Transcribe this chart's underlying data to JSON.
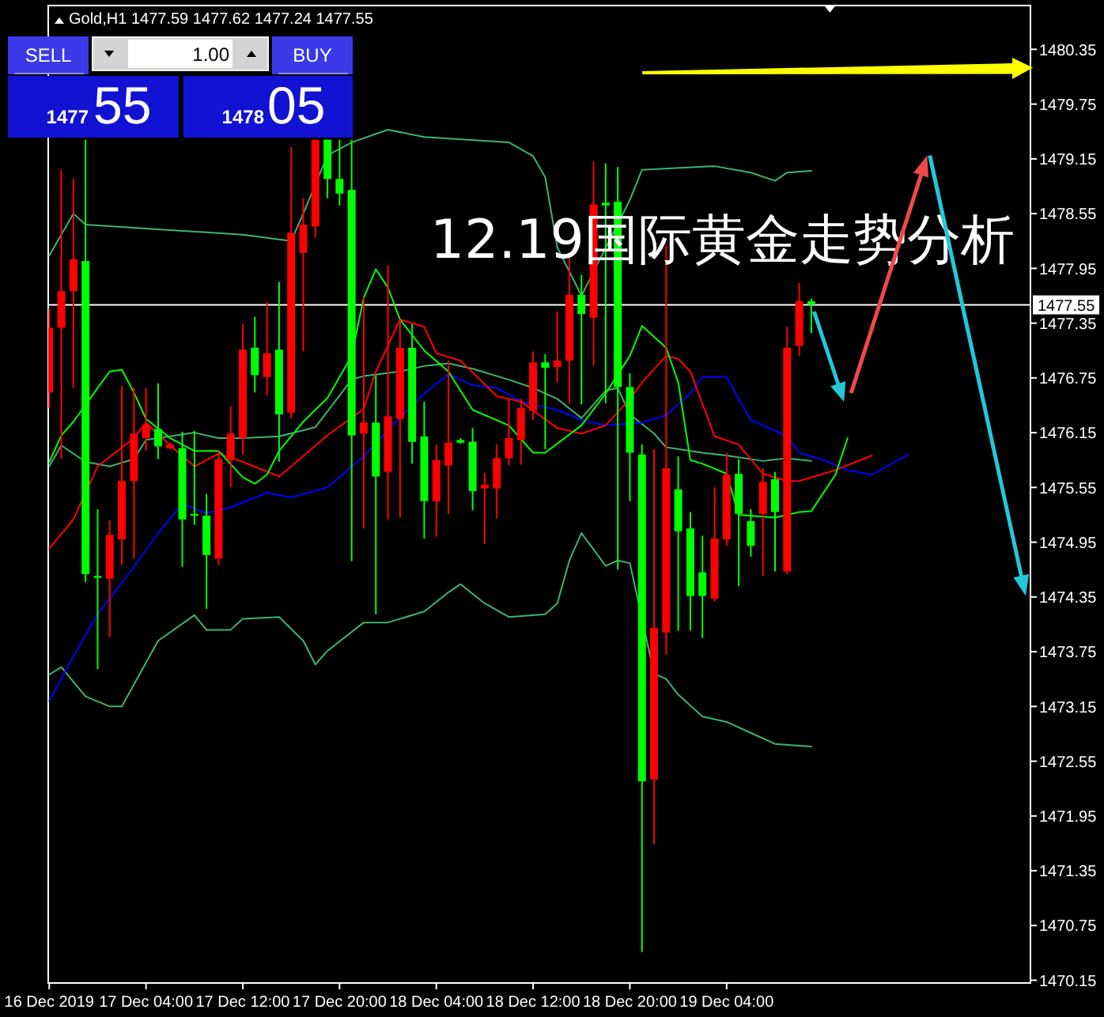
{
  "chart_data": {
    "type": "candlestick",
    "title": "12.19国际黄金走势分析",
    "subtitle": "Gold,H1 1477.59 1477.62 1477.24 1477.55",
    "annotations": [
      "SELL",
      "1.00",
      "BUY",
      "1477",
      "55",
      "1478",
      "05"
    ],
    "x": [
      "2019-12-16T20:00",
      "2019-12-16T21:00",
      "2019-12-16T22:00",
      "2019-12-16T23:00",
      "2019-12-17T00:00",
      "2019-12-17T01:00",
      "2019-12-17T02:00",
      "2019-12-17T03:00",
      "2019-12-17T04:00",
      "2019-12-17T05:00",
      "2019-12-17T06:00",
      "2019-12-17T07:00",
      "2019-12-17T08:00",
      "2019-12-17T09:00",
      "2019-12-17T10:00",
      "2019-12-17T11:00",
      "2019-12-17T12:00",
      "2019-12-17T13:00",
      "2019-12-17T14:00",
      "2019-12-17T15:00",
      "2019-12-17T16:00",
      "2019-12-17T17:00",
      "2019-12-17T18:00",
      "2019-12-17T19:00",
      "2019-12-17T20:00",
      "2019-12-17T21:00",
      "2019-12-17T22:00",
      "2019-12-17T23:00",
      "2019-12-18T00:00",
      "2019-12-18T01:00",
      "2019-12-18T02:00",
      "2019-12-18T03:00",
      "2019-12-18T04:00",
      "2019-12-18T05:00",
      "2019-12-18T06:00",
      "2019-12-18T07:00",
      "2019-12-18T08:00",
      "2019-12-18T09:00",
      "2019-12-18T10:00",
      "2019-12-18T11:00",
      "2019-12-18T12:00",
      "2019-12-18T13:00",
      "2019-12-18T14:00",
      "2019-12-18T15:00",
      "2019-12-18T16:00",
      "2019-12-18T17:00",
      "2019-12-18T18:00",
      "2019-12-18T19:00",
      "2019-12-18T20:00",
      "2019-12-18T21:00",
      "2019-12-18T22:00",
      "2019-12-18T23:00",
      "2019-12-19T00:00",
      "2019-12-19T01:00",
      "2019-12-19T02:00",
      "2019-12-19T03:00",
      "2019-12-19T04:00",
      "2019-12-19T05:00",
      "2019-12-19T06:00",
      "2019-12-19T07:00",
      "2019-12-19T08:00",
      "2019-12-19T09:00",
      "2019-12-19T10:00",
      "2019-12-19T11:00"
    ],
    "ohlc": [
      [
        1476.59,
        1477.51,
        1476.42,
        1477.3
      ],
      [
        1477.3,
        1479.03,
        1475.86,
        1477.7
      ],
      [
        1477.7,
        1478.93,
        1476.64,
        1478.05
      ],
      [
        1478.03,
        1479.36,
        1474.51,
        1474.6
      ],
      [
        1474.58,
        1475.31,
        1473.56,
        1474.56
      ],
      [
        1474.55,
        1475.19,
        1473.91,
        1475.03
      ],
      [
        1474.98,
        1476.66,
        1474.7,
        1475.62
      ],
      [
        1475.62,
        1476.64,
        1474.77,
        1476.14
      ],
      [
        1476.09,
        1476.64,
        1475.95,
        1476.24
      ],
      [
        1476.19,
        1476.69,
        1475.86,
        1476.0
      ],
      [
        1475.98,
        1476.04,
        1475.97,
        1476.02
      ],
      [
        1475.98,
        1476.16,
        1474.68,
        1475.2
      ],
      [
        1475.26,
        1476.17,
        1475.14,
        1475.24
      ],
      [
        1475.24,
        1475.48,
        1474.22,
        1474.81
      ],
      [
        1474.77,
        1475.95,
        1474.7,
        1475.86
      ],
      [
        1475.85,
        1476.44,
        1475.55,
        1476.14
      ],
      [
        1476.09,
        1477.34,
        1475.91,
        1477.06
      ],
      [
        1477.08,
        1477.42,
        1476.59,
        1476.78
      ],
      [
        1476.76,
        1477.58,
        1476.56,
        1477.02
      ],
      [
        1477.06,
        1477.8,
        1475.83,
        1476.35
      ],
      [
        1476.37,
        1479.28,
        1476.3,
        1478.34
      ],
      [
        1478.12,
        1478.72,
        1477.04,
        1478.43
      ],
      [
        1478.41,
        1479.36,
        1478.29,
        1479.36
      ],
      [
        1479.36,
        1479.36,
        1478.72,
        1478.93
      ],
      [
        1478.93,
        1479.36,
        1478.64,
        1478.77
      ],
      [
        1478.81,
        1479.36,
        1474.74,
        1476.12
      ],
      [
        1476.14,
        1477.63,
        1475.1,
        1476.26
      ],
      [
        1476.26,
        1476.78,
        1474.16,
        1475.67
      ],
      [
        1475.72,
        1477.98,
        1475.2,
        1476.33
      ],
      [
        1476.3,
        1477.39,
        1475.22,
        1477.08
      ],
      [
        1477.08,
        1477.34,
        1475.81,
        1476.05
      ],
      [
        1476.11,
        1476.49,
        1474.99,
        1475.4
      ],
      [
        1475.4,
        1476.02,
        1475.01,
        1475.85
      ],
      [
        1475.79,
        1476.94,
        1475.26,
        1476.04
      ],
      [
        1476.07,
        1476.09,
        1476.03,
        1476.04
      ],
      [
        1476.05,
        1476.2,
        1475.3,
        1475.51
      ],
      [
        1475.54,
        1475.71,
        1474.93,
        1475.58
      ],
      [
        1475.54,
        1476.02,
        1475.21,
        1475.87
      ],
      [
        1475.87,
        1476.52,
        1475.79,
        1476.09
      ],
      [
        1476.07,
        1476.52,
        1475.8,
        1476.42
      ],
      [
        1476.39,
        1477.04,
        1476.29,
        1476.92
      ],
      [
        1476.92,
        1477.01,
        1475.97,
        1476.86
      ],
      [
        1476.87,
        1477.48,
        1476.7,
        1476.94
      ],
      [
        1476.94,
        1478.09,
        1476.47,
        1477.66
      ],
      [
        1477.66,
        1477.88,
        1476.46,
        1477.45
      ],
      [
        1477.41,
        1479.12,
        1476.88,
        1478.65
      ],
      [
        1478.67,
        1479.1,
        1476.47,
        1478.64
      ],
      [
        1478.68,
        1479.06,
        1474.65,
        1476.65
      ],
      [
        1476.65,
        1476.8,
        1475.4,
        1475.93
      ],
      [
        1475.91,
        1476.02,
        1470.46,
        1472.33
      ],
      [
        1472.35,
        1475.97,
        1471.64,
        1474.01
      ],
      [
        1473.96,
        1478.2,
        1473.72,
        1475.76
      ],
      [
        1475.53,
        1475.89,
        1473.98,
        1475.07
      ],
      [
        1475.1,
        1475.28,
        1473.98,
        1474.36
      ],
      [
        1474.62,
        1475.02,
        1473.9,
        1474.36
      ],
      [
        1474.33,
        1475.55,
        1474.3,
        1474.99
      ],
      [
        1474.98,
        1475.93,
        1474.91,
        1475.69
      ],
      [
        1475.7,
        1475.86,
        1474.47,
        1475.26
      ],
      [
        1475.18,
        1475.31,
        1474.79,
        1474.91
      ],
      [
        1475.26,
        1475.76,
        1474.58,
        1475.61
      ],
      [
        1475.64,
        1475.72,
        1474.63,
        1475.28
      ],
      [
        1474.63,
        1477.31,
        1474.6,
        1477.08
      ],
      [
        1477.1,
        1477.79,
        1476.99,
        1477.59
      ],
      [
        1477.59,
        1477.62,
        1477.24,
        1477.55
      ]
    ],
    "colors": [
      "#ff0000",
      "#ff0000",
      "#ff0000",
      "#00ff00",
      "#00ff00",
      "#ff0000",
      "#ff0000",
      "#ff0000",
      "#ff0000",
      "#00ff00",
      "#ff0000",
      "#00ff00",
      "#00ff00",
      "#00ff00",
      "#ff0000",
      "#ff0000",
      "#ff0000",
      "#00ff00",
      "#ff0000",
      "#00ff00",
      "#ff0000",
      "#ff0000",
      "#ff0000",
      "#00ff00",
      "#00ff00",
      "#00ff00",
      "#ff0000",
      "#00ff00",
      "#ff0000",
      "#ff0000",
      "#00ff00",
      "#00ff00",
      "#ff0000",
      "#ff0000",
      "#00ff00",
      "#00ff00",
      "#ff0000",
      "#ff0000",
      "#ff0000",
      "#ff0000",
      "#ff0000",
      "#00ff00",
      "#ff0000",
      "#ff0000",
      "#00ff00",
      "#ff0000",
      "#00ff00",
      "#00ff00",
      "#00ff00",
      "#00ff00",
      "#ff0000",
      "#ff0000",
      "#00ff00",
      "#00ff00",
      "#00ff00",
      "#ff0000",
      "#ff0000",
      "#00ff00",
      "#00ff00",
      "#ff0000",
      "#00ff00",
      "#ff0000",
      "#ff0000",
      "#00ff00"
    ],
    "series": [
      {
        "type": "line",
        "color": "#3cb371",
        "x": [
          "2019-12-16T20:00",
          "2019-12-16T21:00",
          "2019-12-16T23:00",
          "2019-12-17T01:00",
          "2019-12-17T02:00",
          "2019-12-17T05:00",
          "2019-12-17T08:00",
          "2019-12-17T09:00",
          "2019-12-17T11:00",
          "2019-12-17T12:00",
          "2019-12-17T15:00",
          "2019-12-17T17:00",
          "2019-12-17T18:00",
          "2019-12-17T19:00",
          "2019-12-17T22:00",
          "2019-12-18T00:00",
          "2019-12-18T03:00",
          "2019-12-18T05:00",
          "2019-12-18T06:00",
          "2019-12-18T08:00",
          "2019-12-18T10:00",
          "2019-12-18T13:00",
          "2019-12-18T14:00",
          "2019-12-18T15:00",
          "2019-12-18T16:00",
          "2019-12-18T17:00",
          "2019-12-18T18:00",
          "2019-12-18T19:00",
          "2019-12-18T20:00",
          "2019-12-18T22:00",
          "2019-12-18T23:00",
          "2019-12-19T00:00",
          "2019-12-19T02:00",
          "2019-12-19T04:00",
          "2019-12-19T06:00",
          "2019-12-19T08:00",
          "2019-12-19T11:00"
        ],
        "values": [
          1473.5,
          1473.58,
          1473.26,
          1473.15,
          1473.15,
          1473.87,
          1474.15,
          1473.99,
          1473.99,
          1474.11,
          1474.13,
          1473.87,
          1473.61,
          1473.76,
          1474.07,
          1474.07,
          1474.19,
          1474.4,
          1474.49,
          1474.28,
          1474.13,
          1474.16,
          1474.28,
          1474.75,
          1475.05,
          1474.87,
          1474.69,
          1474.75,
          1474.72,
          1473.51,
          1473.45,
          1473.28,
          1473.04,
          1472.98,
          1472.86,
          1472.74,
          1472.71
        ]
      },
      {
        "type": "line",
        "color": "#3cb371",
        "x": [
          "2019-12-16T20:00",
          "2019-12-16T22:00",
          "2019-12-16T23:00",
          "2019-12-17T06:00",
          "2019-12-17T12:00",
          "2019-12-17T16:00",
          "2019-12-17T17:00",
          "2019-12-17T19:00",
          "2019-12-17T21:00",
          "2019-12-18T00:00",
          "2019-12-18T03:00",
          "2019-12-18T10:00",
          "2019-12-18T12:00",
          "2019-12-18T13:00",
          "2019-12-18T14:00",
          "2019-12-18T16:00",
          "2019-12-18T20:00",
          "2019-12-18T21:00",
          "2019-12-19T03:00",
          "2019-12-19T06:00",
          "2019-12-19T08:00",
          "2019-12-19T09:00",
          "2019-12-19T11:00"
        ],
        "values": [
          1478.09,
          1478.55,
          1478.43,
          1478.37,
          1478.32,
          1478.25,
          1478.55,
          1479.19,
          1479.33,
          1479.47,
          1479.39,
          1479.33,
          1479.18,
          1478.95,
          1478.18,
          1477.65,
          1478.7,
          1479.03,
          1479.07,
          1479.0,
          1478.91,
          1479.0,
          1479.02
        ]
      },
      {
        "type": "line",
        "color": "#3cb371",
        "x": [
          "2019-12-16T20:00",
          "2019-12-16T21:00",
          "2019-12-16T23:00",
          "2019-12-17T01:00",
          "2019-12-17T03:00",
          "2019-12-17T04:00",
          "2019-12-17T08:00",
          "2019-12-17T10:00",
          "2019-12-17T12:00",
          "2019-12-17T15:00",
          "2019-12-17T18:00",
          "2019-12-17T21:00",
          "2019-12-17T22:00",
          "2019-12-18T01:00",
          "2019-12-18T03:00",
          "2019-12-18T05:00",
          "2019-12-18T07:00",
          "2019-12-18T10:00",
          "2019-12-18T12:00",
          "2019-12-18T14:00",
          "2019-12-18T16:00",
          "2019-12-18T17:00",
          "2019-12-18T18:00",
          "2019-12-18T19:00",
          "2019-12-18T20:00",
          "2019-12-18T22:00",
          "2019-12-18T23:00",
          "2019-12-19T02:00",
          "2019-12-19T04:00",
          "2019-12-19T07:00",
          "2019-12-19T09:00",
          "2019-12-19T11:00"
        ],
        "values": [
          1475.78,
          1476.01,
          1475.83,
          1475.78,
          1475.86,
          1476.07,
          1476.15,
          1476.09,
          1476.09,
          1476.11,
          1476.21,
          1476.73,
          1476.77,
          1476.82,
          1476.88,
          1476.91,
          1476.85,
          1476.73,
          1476.64,
          1476.52,
          1476.31,
          1476.46,
          1476.61,
          1476.64,
          1476.35,
          1476.14,
          1475.99,
          1475.93,
          1475.9,
          1475.84,
          1475.87,
          1475.84
        ]
      },
      {
        "type": "line",
        "color": "#0000ff",
        "x": [
          "2019-12-16T20:00",
          "2019-12-16T22:00",
          "2019-12-17T00:00",
          "2019-12-17T03:00",
          "2019-12-17T05:00",
          "2019-12-17T07:00",
          "2019-12-17T09:00",
          "2019-12-17T11:00",
          "2019-12-17T14:00",
          "2019-12-17T16:00",
          "2019-12-17T19:00",
          "2019-12-17T22:00",
          "2019-12-18T00:00",
          "2019-12-18T03:00",
          "2019-12-18T05:00",
          "2019-12-18T07:00",
          "2019-12-18T09:00",
          "2019-12-18T11:00",
          "2019-12-18T14:00",
          "2019-12-18T16:00",
          "2019-12-18T18:00",
          "2019-12-18T21:00",
          "2019-12-18T23:00",
          "2019-12-19T01:00",
          "2019-12-19T02:00",
          "2019-12-19T04:00",
          "2019-12-19T05:00",
          "2019-12-19T06:00",
          "2019-12-19T09:00",
          "2019-12-19T10:00",
          "2019-12-19T12:00",
          "2019-12-19T14:00",
          "2019-12-19T16:00",
          "2019-12-19T19:00"
        ],
        "values": [
          1473.21,
          1473.7,
          1474.16,
          1474.68,
          1475.05,
          1475.37,
          1475.27,
          1475.33,
          1475.49,
          1475.44,
          1475.55,
          1475.89,
          1476.18,
          1476.58,
          1476.79,
          1476.67,
          1476.64,
          1476.49,
          1476.4,
          1476.29,
          1476.23,
          1476.26,
          1476.34,
          1476.58,
          1476.76,
          1476.76,
          1476.52,
          1476.29,
          1476.11,
          1475.93,
          1475.85,
          1475.74,
          1475.69,
          1475.91
        ]
      },
      {
        "type": "line",
        "color": "#ff0000",
        "x": [
          "2019-12-16T20:00",
          "2019-12-16T22:00",
          "2019-12-17T00:00",
          "2019-12-17T03:00",
          "2019-12-17T04:00",
          "2019-12-17T06:00",
          "2019-12-17T08:00",
          "2019-12-17T10:00",
          "2019-12-17T12:00",
          "2019-12-17T15:00",
          "2019-12-17T16:00",
          "2019-12-17T19:00",
          "2019-12-17T22:00",
          "2019-12-17T23:00",
          "2019-12-18T01:00",
          "2019-12-18T03:00",
          "2019-12-18T04:00",
          "2019-12-18T06:00",
          "2019-12-18T09:00",
          "2019-12-18T11:00",
          "2019-12-18T14:00",
          "2019-12-18T16:00",
          "2019-12-18T18:00",
          "2019-12-18T20:00",
          "2019-12-18T21:00",
          "2019-12-18T23:00",
          "2019-12-19T00:00",
          "2019-12-19T01:00",
          "2019-12-19T03:00",
          "2019-12-19T05:00",
          "2019-12-19T07:00",
          "2019-12-19T09:00",
          "2019-12-19T10:00",
          "2019-12-19T13:00",
          "2019-12-19T16:00"
        ],
        "values": [
          1474.88,
          1475.2,
          1475.78,
          1476.09,
          1476.26,
          1476.01,
          1475.78,
          1475.92,
          1475.83,
          1475.67,
          1475.78,
          1476.12,
          1476.41,
          1476.82,
          1477.39,
          1477.31,
          1477.02,
          1476.94,
          1476.55,
          1476.49,
          1476.2,
          1476.14,
          1476.23,
          1476.52,
          1476.7,
          1476.99,
          1476.96,
          1476.82,
          1476.11,
          1476.02,
          1475.7,
          1475.62,
          1475.62,
          1475.74,
          1475.9
        ]
      },
      {
        "type": "line",
        "color": "#00ff00",
        "x": [
          "2019-12-16T20:00",
          "2019-12-16T21:00",
          "2019-12-16T22:00",
          "2019-12-17T00:00",
          "2019-12-17T01:00",
          "2019-12-17T02:00",
          "2019-12-17T03:00",
          "2019-12-17T04:00",
          "2019-12-17T06:00",
          "2019-12-17T08:00",
          "2019-12-17T10:00",
          "2019-12-17T12:00",
          "2019-12-17T13:00",
          "2019-12-17T14:00",
          "2019-12-17T15:00",
          "2019-12-17T17:00",
          "2019-12-17T19:00",
          "2019-12-17T21:00",
          "2019-12-17T22:00",
          "2019-12-17T23:00",
          "2019-12-18T00:00",
          "2019-12-18T01:00",
          "2019-12-18T03:00",
          "2019-12-18T05:00",
          "2019-12-18T07:00",
          "2019-12-18T10:00",
          "2019-12-18T12:00",
          "2019-12-18T13:00",
          "2019-12-18T16:00",
          "2019-12-18T18:00",
          "2019-12-18T20:00",
          "2019-12-18T21:00",
          "2019-12-18T23:00",
          "2019-12-19T00:00",
          "2019-12-19T01:00",
          "2019-12-19T02:00",
          "2019-12-19T04:00",
          "2019-12-19T05:00",
          "2019-12-19T08:00",
          "2019-12-19T10:00",
          "2019-12-19T11:00",
          "2019-12-19T13:00",
          "2019-12-19T14:00"
        ],
        "values": [
          1475.83,
          1476.12,
          1476.27,
          1476.64,
          1476.82,
          1476.84,
          1476.59,
          1476.3,
          1476.09,
          1475.95,
          1475.95,
          1475.66,
          1475.59,
          1475.69,
          1475.95,
          1476.27,
          1476.53,
          1476.99,
          1477.63,
          1477.94,
          1477.74,
          1477.39,
          1477.05,
          1476.82,
          1476.4,
          1476.23,
          1475.93,
          1475.93,
          1476.23,
          1476.58,
          1476.99,
          1477.32,
          1477.08,
          1476.7,
          1475.85,
          1475.81,
          1475.7,
          1475.25,
          1475.22,
          1475.28,
          1475.29,
          1475.69,
          1476.09
        ]
      }
    ],
    "xlim": [
      "2019-12-16T19:55",
      "2019-12-20T05:07"
    ],
    "ylim": [
      1470.12,
      1480.83
    ],
    "xticks": [
      {
        "value": "2019-12-16T20:00",
        "label": "16 Dec 2019"
      },
      {
        "value": "2019-12-17T04:00",
        "label": "17 Dec 04:00"
      },
      {
        "value": "2019-12-17T12:00",
        "label": "17 Dec 12:00"
      },
      {
        "value": "2019-12-17T20:00",
        "label": "17 Dec 20:00"
      },
      {
        "value": "2019-12-18T04:00",
        "label": "18 Dec 04:00"
      },
      {
        "value": "2019-12-18T12:00",
        "label": "18 Dec 12:00"
      },
      {
        "value": "2019-12-18T20:00",
        "label": "18 Dec 20:00"
      },
      {
        "value": "2019-12-19T04:00",
        "label": "19 Dec 04:00"
      }
    ],
    "yticks": [
      1480.35,
      1479.75,
      1479.15,
      1478.55,
      1477.95,
      1477.35,
      1476.75,
      1476.15,
      1475.55,
      1474.95,
      1474.35,
      1473.75,
      1473.15,
      1472.55,
      1471.95,
      1471.35,
      1470.75,
      1470.15
    ],
    "ref_lines": [
      {
        "axis": "y",
        "value": 1477.55,
        "label": "1477.55",
        "color": "#ffffff"
      }
    ]
  }
}
